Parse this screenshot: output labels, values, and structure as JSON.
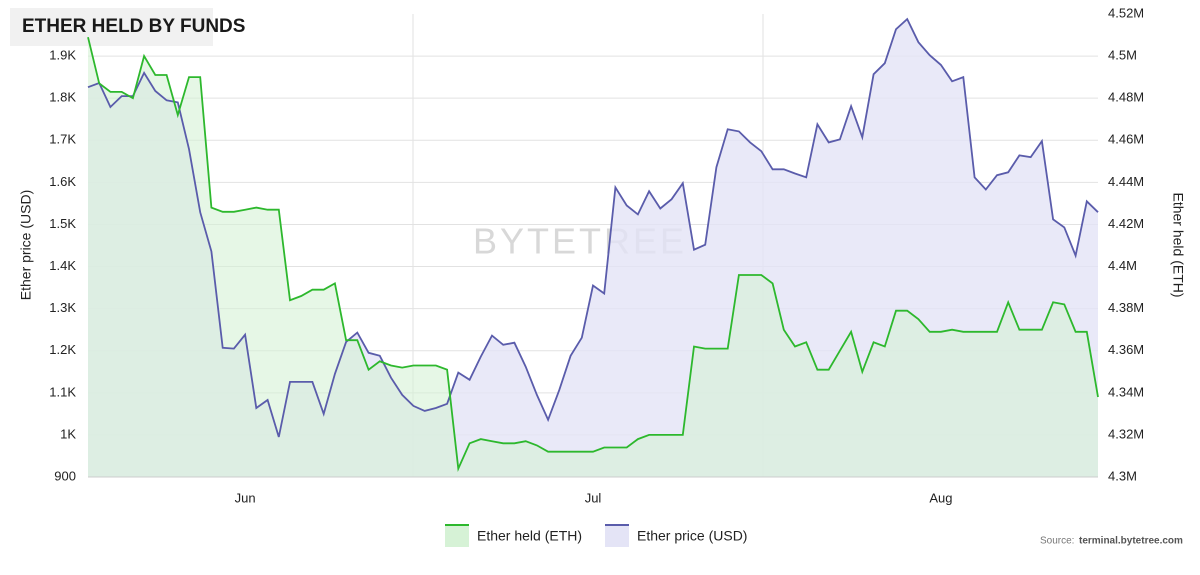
{
  "chart_data": {
    "type": "line",
    "title": "ETHER HELD BY FUNDS",
    "y_label": "Ether price (USD)",
    "y2_label": "Ether held (ETH)",
    "watermark": "BYTETREE",
    "source_label": "Source:",
    "source_site": "terminal.bytetree.com",
    "grid": true,
    "legend": "bottom",
    "categories": [
      null,
      null,
      null,
      null,
      null,
      null,
      null,
      null,
      null,
      null,
      null,
      null,
      null,
      null,
      "Jun",
      null,
      null,
      null,
      null,
      null,
      null,
      null,
      null,
      null,
      null,
      null,
      null,
      null,
      null,
      null,
      null,
      null,
      null,
      null,
      null,
      null,
      null,
      null,
      null,
      null,
      null,
      null,
      null,
      null,
      null,
      "Jul",
      null,
      null,
      null,
      null,
      null,
      null,
      null,
      null,
      null,
      null,
      null,
      null,
      null,
      null,
      null,
      null,
      null,
      null,
      null,
      null,
      null,
      null,
      null,
      null,
      null,
      null,
      null,
      null,
      null,
      null,
      "Aug",
      null,
      null,
      null,
      null,
      null,
      null,
      null,
      null,
      null,
      null,
      null,
      null,
      null,
      null
    ],
    "ylim": [
      900,
      2000
    ],
    "yticks": [
      900,
      {
        "value": 1000,
        "label": "1K"
      },
      {
        "value": 1100,
        "label": "1.1K"
      },
      {
        "value": 1200,
        "label": "1.2K"
      },
      {
        "value": 1300,
        "label": "1.3K"
      },
      {
        "value": 1400,
        "label": "1.4K"
      },
      {
        "value": 1500,
        "label": "1.5K"
      },
      {
        "value": 1600,
        "label": "1.6K"
      },
      {
        "value": 1700,
        "label": "1.7K"
      },
      {
        "value": 1800,
        "label": "1.8K"
      },
      {
        "value": 1900,
        "label": "1.9K"
      }
    ],
    "y2lim": [
      4300000,
      4520000
    ],
    "y2ticks": [
      {
        "value": 4300000,
        "label": "4.3M"
      },
      {
        "value": 4320000,
        "label": "4.32M"
      },
      {
        "value": 4340000,
        "label": "4.34M"
      },
      {
        "value": 4360000,
        "label": "4.36M"
      },
      {
        "value": 4380000,
        "label": "4.38M"
      },
      {
        "value": 4400000,
        "label": "4.4M"
      },
      {
        "value": 4420000,
        "label": "4.42M"
      },
      {
        "value": 4440000,
        "label": "4.44M"
      },
      {
        "value": 4460000,
        "label": "4.46M"
      },
      {
        "value": 4480000,
        "label": "4.48M"
      },
      {
        "value": 4500000,
        "label": "4.5M"
      },
      {
        "value": 4520000,
        "label": "4.52M"
      }
    ],
    "series": [
      {
        "name": "Ether held (ETH)",
        "color": "#2db82d",
        "fill": "#d6f2d6",
        "axis": "y2",
        "values": [
          4509000,
          4487000,
          4483000,
          4483000,
          4480000,
          4500000,
          4491000,
          4491000,
          4472000,
          4490000,
          4490000,
          4428000,
          4426000,
          4426000,
          4427000,
          4428000,
          4427000,
          4427000,
          4384000,
          4386000,
          4389000,
          4389000,
          4392000,
          4365000,
          4365000,
          4351000,
          4355000,
          4353000,
          4352000,
          4353000,
          4353000,
          4353000,
          4351000,
          4304000,
          4316000,
          4318000,
          4317000,
          4316000,
          4316000,
          4317000,
          4315000,
          4312000,
          4312000,
          4312000,
          4312000,
          4312000,
          4314000,
          4314000,
          4314000,
          4318000,
          4320000,
          4320000,
          4320000,
          4320000,
          4362000,
          4361000,
          4361000,
          4361000,
          4396000,
          4396000,
          4396000,
          4392000,
          4370000,
          4362000,
          4364000,
          4351000,
          4351000,
          4360000,
          4369000,
          4350000,
          4364000,
          4362000,
          4379000,
          4379000,
          4375000,
          4369000,
          4369000,
          4370000,
          4369000,
          4369000,
          4369000,
          4369000,
          4383000,
          4370000,
          4370000,
          4370000,
          4383000,
          4382000,
          4369000,
          4369000,
          4338000
        ]
      },
      {
        "name": "Ether price (USD)",
        "color": "#5a5cab",
        "fill": "#e4e4f6",
        "axis": "y",
        "values": [
          1826,
          1836,
          1779,
          1805,
          1805,
          1860,
          1817,
          1795,
          1790,
          1679,
          1529,
          1436,
          1207,
          1205,
          1238,
          1064,
          1083,
          995,
          1126,
          1126,
          1126,
          1050,
          1145,
          1221,
          1243,
          1195,
          1188,
          1136,
          1095,
          1069,
          1057,
          1064,
          1074,
          1148,
          1131,
          1186,
          1236,
          1214,
          1219,
          1162,
          1095,
          1036,
          1107,
          1188,
          1231,
          1355,
          1336,
          1588,
          1545,
          1524,
          1579,
          1538,
          1560,
          1598,
          1440,
          1452,
          1636,
          1726,
          1721,
          1695,
          1674,
          1631,
          1631,
          1621,
          1612,
          1738,
          1695,
          1702,
          1781,
          1707,
          1857,
          1883,
          1964,
          1988,
          1933,
          1902,
          1879,
          1840,
          1850,
          1612,
          1583,
          1617,
          1624,
          1664,
          1660,
          1698,
          1512,
          1493,
          1426,
          1555,
          1529
        ]
      }
    ]
  }
}
